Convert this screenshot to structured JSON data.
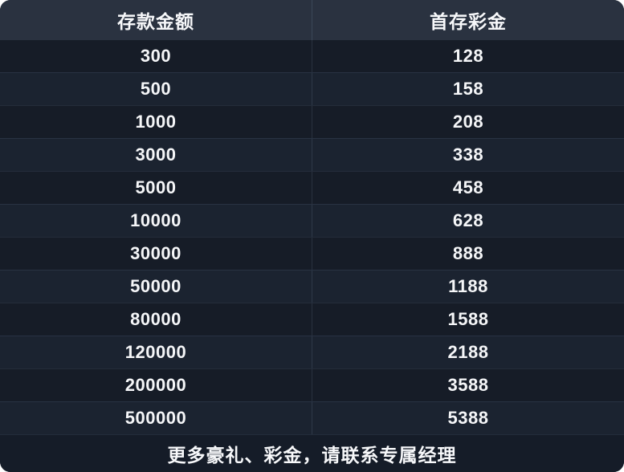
{
  "table": {
    "columns": [
      {
        "label": "存款金额"
      },
      {
        "label": "首存彩金"
      }
    ],
    "rows": [
      {
        "deposit": "300",
        "bonus": "128"
      },
      {
        "deposit": "500",
        "bonus": "158"
      },
      {
        "deposit": "1000",
        "bonus": "208"
      },
      {
        "deposit": "3000",
        "bonus": "338"
      },
      {
        "deposit": "5000",
        "bonus": "458"
      },
      {
        "deposit": "10000",
        "bonus": "628"
      },
      {
        "deposit": "30000",
        "bonus": "888"
      },
      {
        "deposit": "50000",
        "bonus": "1188"
      },
      {
        "deposit": "80000",
        "bonus": "1588"
      },
      {
        "deposit": "120000",
        "bonus": "2188"
      },
      {
        "deposit": "200000",
        "bonus": "3588"
      },
      {
        "deposit": "500000",
        "bonus": "5388"
      }
    ]
  },
  "footer": {
    "note": "更多豪礼、彩金，请联系专属经理"
  },
  "colors": {
    "header_bg": "#2a3240",
    "row_odd_bg": "#161c27",
    "row_even_bg": "#1b2330",
    "footer_bg": "#151c28",
    "divider": "rgba(140,165,195,0.16)",
    "text": "#f7f8fa",
    "page_bg": "#ffffff"
  }
}
